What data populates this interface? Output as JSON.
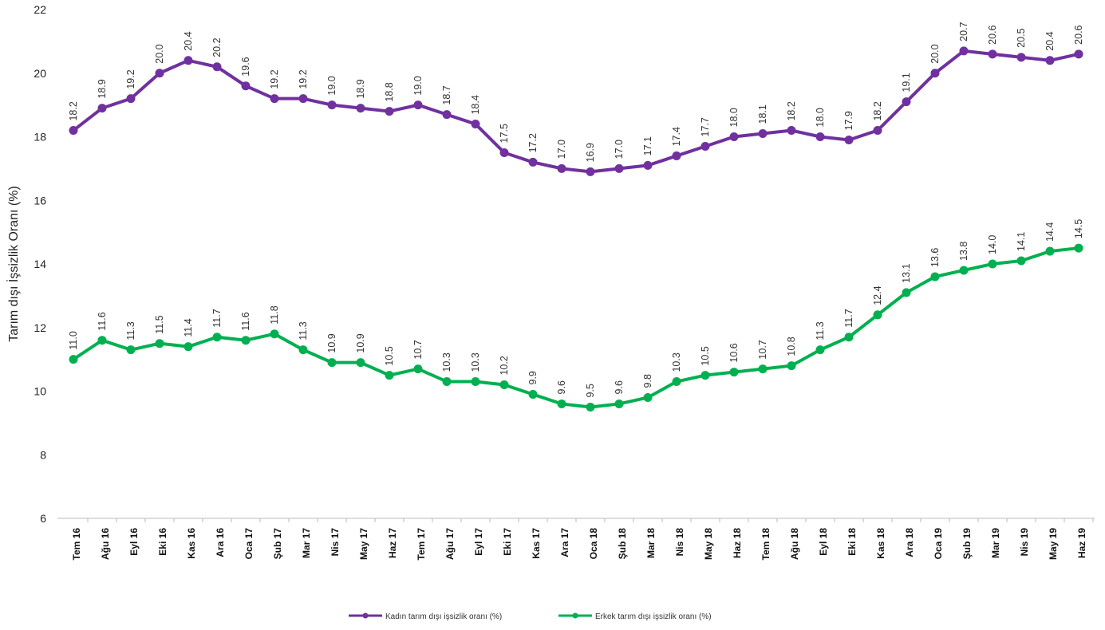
{
  "chart_data": {
    "type": "line",
    "y_label": "Tarım dışı İşsizlik Oranı (%)",
    "categories": [
      "Tem 16",
      "Ağu 16",
      "Eyl 16",
      "Eki 16",
      "Kas 16",
      "Ara 16",
      "Oca 17",
      "Şub 17",
      "Mar 17",
      "Nis 17",
      "May 17",
      "Haz 17",
      "Tem 17",
      "Ağu 17",
      "Eyl 17",
      "Eki 17",
      "Kas 17",
      "Ara 17",
      "Oca 18",
      "Şub 18",
      "Mar 18",
      "Nis 18",
      "May 18",
      "Haz 18",
      "Tem 18",
      "Ağu 18",
      "Eyl 18",
      "Eki 18",
      "Kas 18",
      "Ara 18",
      "Oca 19",
      "Şub 19",
      "Mar 19",
      "Nis 19",
      "May 19",
      "Haz 19"
    ],
    "series": [
      {
        "name": "Kadın tarım dışı işsizlik oranı (%)",
        "color": "#7030a0",
        "values": [
          18.2,
          18.9,
          19.2,
          20.0,
          20.4,
          20.2,
          19.6,
          19.2,
          19.2,
          19.0,
          18.9,
          18.8,
          19.0,
          18.7,
          18.4,
          17.5,
          17.2,
          17.0,
          16.9,
          17.0,
          17.1,
          17.4,
          17.7,
          18.0,
          18.1,
          18.2,
          18.0,
          17.9,
          18.2,
          19.1,
          20.0,
          20.7,
          20.6,
          20.5,
          20.4,
          20.6
        ],
        "value_labels": [
          "18.2",
          "18.9",
          "19.2",
          "20.0",
          "20.4",
          "20.2",
          "19.6",
          "19.2",
          "19.2",
          "19.0",
          "18.9",
          "18.8",
          "19.0",
          "18.7",
          "18.4",
          "17.5",
          "17.2",
          "17.0",
          "16.9",
          "17.0",
          "17.1",
          "17.4",
          "17.7",
          "18.0",
          "18.1",
          "18.2",
          "18.0",
          "17.9",
          "18.2",
          "19.1",
          "20.0",
          "20.7",
          "20.6",
          "20.5",
          "20.4",
          "20.6"
        ]
      },
      {
        "name": "Erkek tarım dışı işsizlik oranı (%)",
        "color": "#00b050",
        "values": [
          11.0,
          11.6,
          11.3,
          11.5,
          11.4,
          11.7,
          11.6,
          11.8,
          11.3,
          10.9,
          10.9,
          10.5,
          10.7,
          10.3,
          10.3,
          10.2,
          9.9,
          9.6,
          9.5,
          9.6,
          9.8,
          10.3,
          10.5,
          10.6,
          10.7,
          10.8,
          11.3,
          11.7,
          12.4,
          13.1,
          13.6,
          13.8,
          14.0,
          14.1,
          14.4,
          14.5
        ],
        "value_labels": [
          "11.0",
          "11.6",
          "11.3",
          "11.5",
          "11.4",
          "11.7",
          "11.6",
          "11.8",
          "11.3",
          "10.9",
          "10.9",
          "10.5",
          "10.7",
          "10.3",
          "10.3",
          "10.2",
          "9.9",
          "9.6",
          "9.5",
          "9.6",
          "9.8",
          "10.3",
          "10.5",
          "10.6",
          "10.7",
          "10.8",
          "11.3",
          "11.7",
          "12.4",
          "13.1",
          "13.6",
          "13.8",
          "14.0",
          "14.1",
          "14.4",
          "14.5"
        ]
      }
    ],
    "ylim": [
      6,
      22
    ],
    "yticks": [
      6,
      8,
      10,
      12,
      14,
      16,
      18,
      20,
      22
    ],
    "grid": false
  }
}
